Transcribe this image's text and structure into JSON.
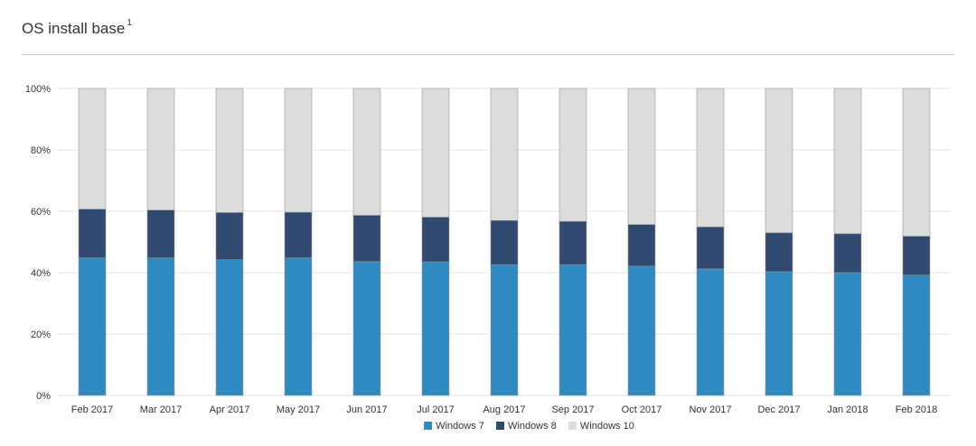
{
  "title": "OS install base",
  "footnote": "1",
  "colors": {
    "windows7": "#2e8ac0",
    "windows8": "#2f4a6e",
    "windows10": "#dcdcdc",
    "grid": "#e6e6e6",
    "bar_border": "#9a9a9a"
  },
  "chart_data": {
    "type": "bar",
    "stacked": true,
    "categories": [
      "Feb 2017",
      "Mar 2017",
      "Apr 2017",
      "May 2017",
      "Jun 2017",
      "Jul 2017",
      "Aug 2017",
      "Sep 2017",
      "Oct 2017",
      "Nov 2017",
      "Dec 2017",
      "Jan 2018",
      "Feb 2018"
    ],
    "y_ticks": [
      "0%",
      "20%",
      "40%",
      "60%",
      "80%",
      "100%"
    ],
    "ylim": [
      0,
      100
    ],
    "legend_position": "bottom",
    "grid": true,
    "series": [
      {
        "name": "Windows 7",
        "color_key": "windows7",
        "values": [
          44.8,
          44.8,
          44.2,
          44.8,
          43.6,
          43.5,
          42.6,
          42.6,
          42.1,
          41.2,
          40.3,
          40.0,
          39.2
        ]
      },
      {
        "name": "Windows 8",
        "color_key": "windows8",
        "values": [
          15.9,
          15.6,
          15.4,
          14.9,
          15.1,
          14.6,
          14.4,
          14.1,
          13.6,
          13.7,
          12.7,
          12.7,
          12.7
        ]
      },
      {
        "name": "Windows 10",
        "color_key": "windows10",
        "values": [
          39.3,
          39.6,
          40.4,
          40.3,
          41.3,
          41.9,
          43.0,
          43.3,
          44.3,
          45.1,
          47.0,
          47.3,
          48.1
        ]
      }
    ]
  }
}
